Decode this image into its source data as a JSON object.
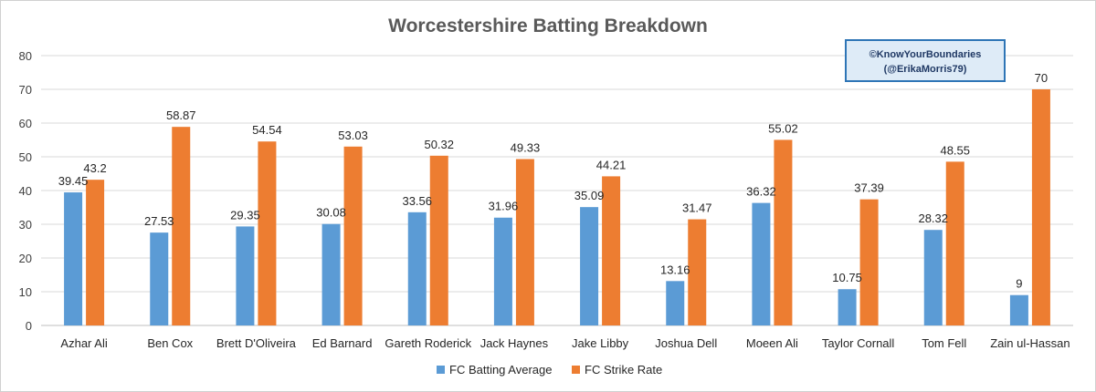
{
  "chart_data": {
    "type": "bar",
    "title": "Worcestershire Batting Breakdown",
    "xlabel": "",
    "ylabel": "",
    "ylim": [
      0,
      80
    ],
    "yticks": [
      0,
      10,
      20,
      30,
      40,
      50,
      60,
      70,
      80
    ],
    "grid": true,
    "legend_position": "bottom",
    "categories": [
      "Azhar Ali",
      "Ben Cox",
      "Brett D'Oliveira",
      "Ed Barnard",
      "Gareth Roderick",
      "Jack Haynes",
      "Jake Libby",
      "Joshua Dell",
      "Moeen Ali",
      "Taylor Cornall",
      "Tom Fell",
      "Zain ul-Hassan"
    ],
    "series": [
      {
        "name": "FC Batting Average",
        "color": "#5b9bd5",
        "values": [
          39.45,
          27.53,
          29.35,
          30.08,
          33.56,
          31.96,
          35.09,
          13.16,
          36.32,
          10.75,
          28.32,
          9
        ]
      },
      {
        "name": "FC Strike Rate",
        "color": "#ed7d31",
        "values": [
          43.2,
          58.87,
          54.54,
          53.03,
          50.32,
          49.33,
          44.21,
          31.47,
          55.02,
          37.39,
          48.55,
          70
        ]
      }
    ],
    "annotation": {
      "line1": "©KnowYourBoundaries",
      "line2": "(@ErikaMorris79)",
      "fill": "#deebf7",
      "border": "#2e75b6"
    }
  }
}
